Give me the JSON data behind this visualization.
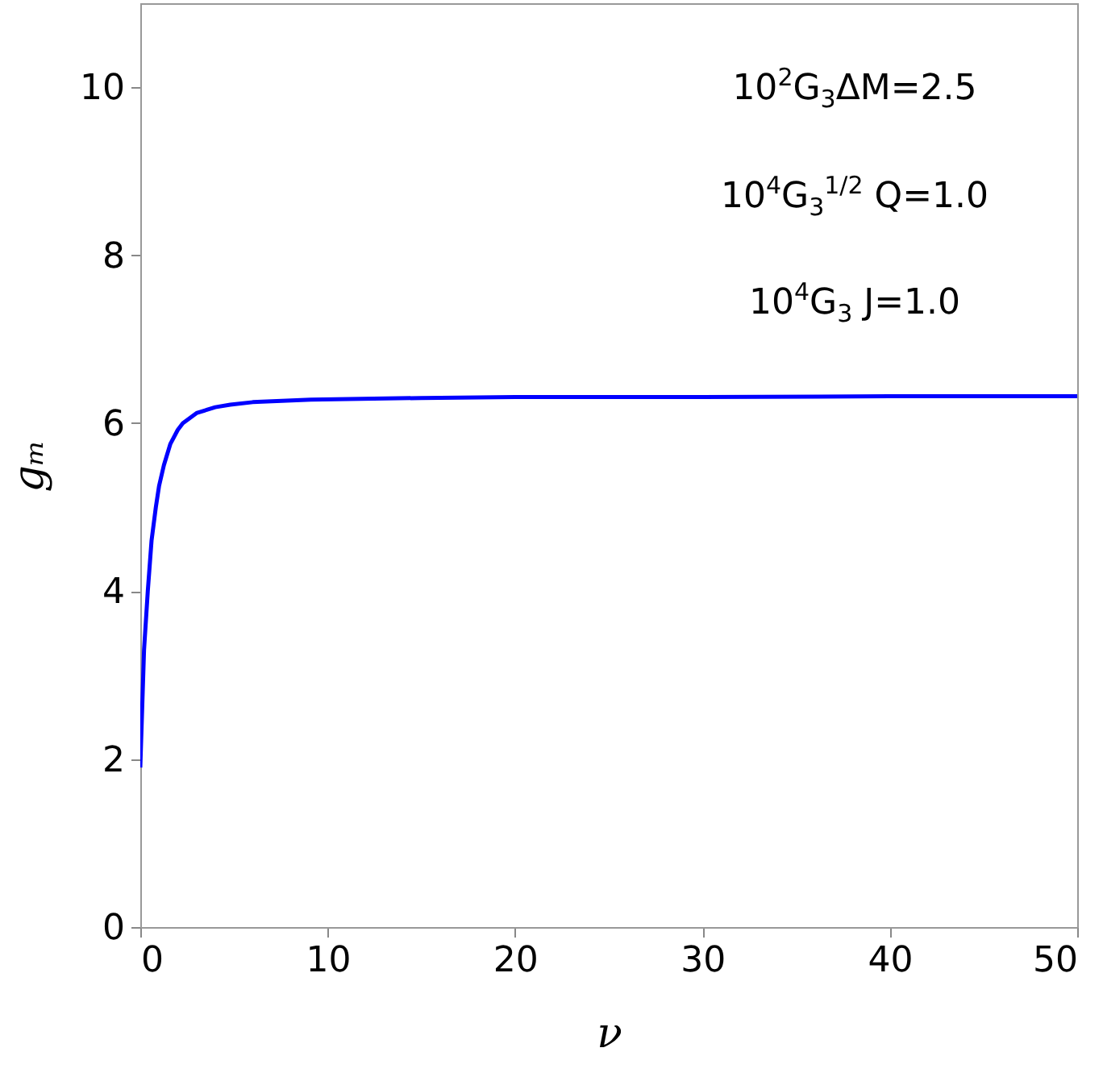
{
  "chart_data": {
    "type": "line",
    "xlabel": "ν",
    "ylabel": "gₘ",
    "annotations": [
      "10$^{2}$G$_{3}$ΔM=2.5",
      "10$^{4}$G$_{3}$$^{1/2}$ Q=1.0",
      "10$^{4}$G$_{3}$ J=1.0"
    ],
    "x": [
      0,
      0.1,
      0.2,
      0.4,
      0.6,
      0.83,
      1.0,
      1.26,
      1.6,
      2.0,
      2.27,
      3.0,
      4.0,
      4.8,
      6.0,
      9.1,
      15,
      20,
      30,
      40,
      50
    ],
    "series": [
      {
        "color": "#0000ff",
        "values": [
          1.9,
          2.6,
          3.3,
          4.0,
          4.6,
          5.0,
          5.25,
          5.5,
          5.75,
          5.92,
          6.0,
          6.12,
          6.19,
          6.22,
          6.25,
          6.28,
          6.3,
          6.31,
          6.31,
          6.32,
          6.32
        ]
      }
    ],
    "xlim": [
      0,
      50
    ],
    "ylim": [
      0,
      11
    ],
    "xticks": [
      0,
      10,
      20,
      30,
      40,
      50
    ],
    "yticks": [
      0,
      2,
      4,
      6,
      8,
      10
    ],
    "grid": false,
    "line_style": "solid",
    "marker": "none"
  }
}
